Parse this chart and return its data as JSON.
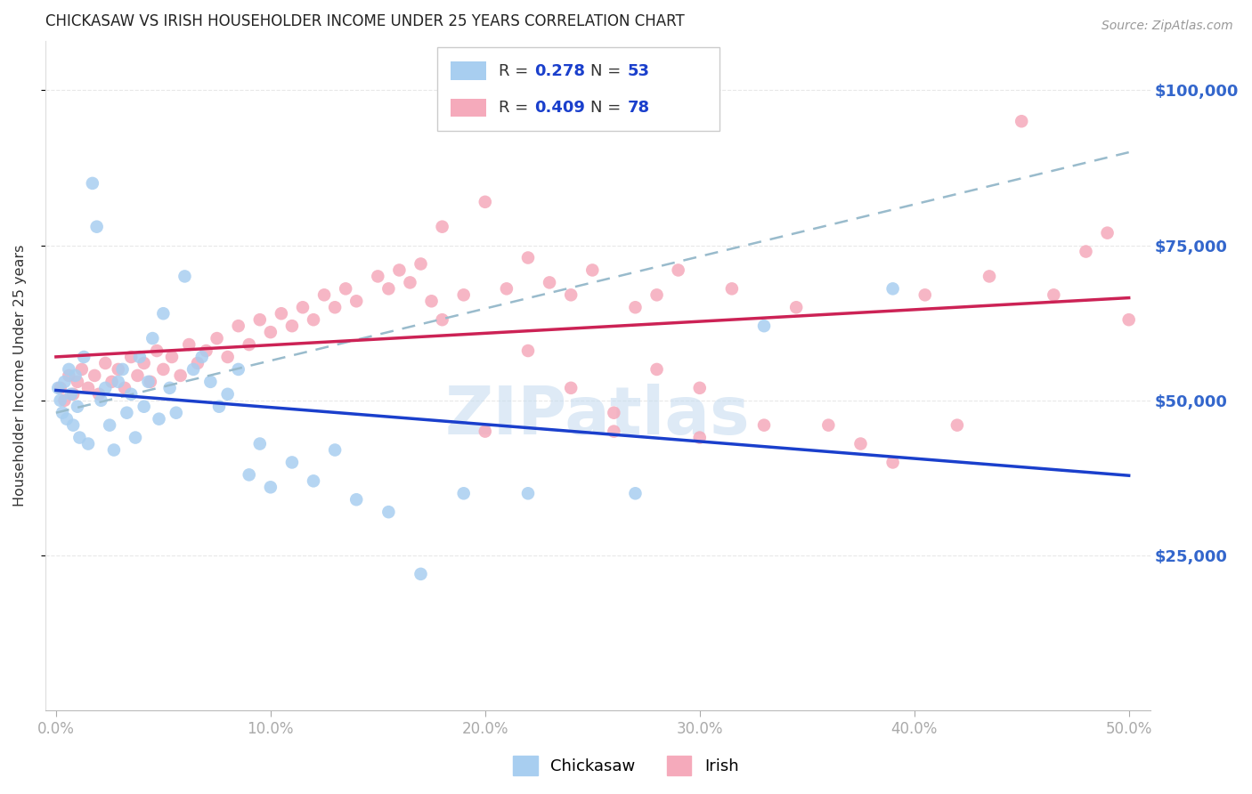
{
  "title": "CHICKASAW VS IRISH HOUSEHOLDER INCOME UNDER 25 YEARS CORRELATION CHART",
  "source_text": "Source: ZipAtlas.com",
  "ylabel": "Householder Income Under 25 years",
  "ytick_labels": [
    "$25,000",
    "$50,000",
    "$75,000",
    "$100,000"
  ],
  "ytick_vals": [
    25000,
    50000,
    75000,
    100000
  ],
  "ylim": [
    0,
    108000
  ],
  "xlim": [
    -0.5,
    51
  ],
  "legend1_R": "0.278",
  "legend1_N": "53",
  "legend2_R": "0.409",
  "legend2_N": "78",
  "legend1_label": "Chickasaw",
  "legend2_label": "Irish",
  "blue_color": "#a8cef0",
  "pink_color": "#f5aabb",
  "blue_line_color": "#1a3fcc",
  "pink_line_color": "#cc2255",
  "grey_dash_color": "#99bbcc",
  "right_tick_color": "#3366cc",
  "grid_color": "#e8e8e8",
  "background_color": "#ffffff",
  "chickasaw_x": [
    0.1,
    0.2,
    0.3,
    0.4,
    0.5,
    0.6,
    0.7,
    0.8,
    0.9,
    1.0,
    1.1,
    1.3,
    1.5,
    1.7,
    1.9,
    2.1,
    2.3,
    2.5,
    2.7,
    2.9,
    3.1,
    3.3,
    3.5,
    3.7,
    3.9,
    4.1,
    4.3,
    4.5,
    4.8,
    5.0,
    5.3,
    5.6,
    6.0,
    6.4,
    6.8,
    7.2,
    7.6,
    8.0,
    8.5,
    9.0,
    9.5,
    10.0,
    11.0,
    12.0,
    13.0,
    14.0,
    15.5,
    17.0,
    19.0,
    22.0,
    27.0,
    33.0,
    39.0
  ],
  "chickasaw_y": [
    52000,
    50000,
    48000,
    53000,
    47000,
    55000,
    51000,
    46000,
    54000,
    49000,
    44000,
    57000,
    43000,
    85000,
    78000,
    50000,
    52000,
    46000,
    42000,
    53000,
    55000,
    48000,
    51000,
    44000,
    57000,
    49000,
    53000,
    60000,
    47000,
    64000,
    52000,
    48000,
    70000,
    55000,
    57000,
    53000,
    49000,
    51000,
    55000,
    38000,
    43000,
    36000,
    40000,
    37000,
    42000,
    34000,
    32000,
    22000,
    35000,
    35000,
    35000,
    62000,
    68000
  ],
  "irish_x": [
    0.2,
    0.4,
    0.6,
    0.8,
    1.0,
    1.2,
    1.5,
    1.8,
    2.0,
    2.3,
    2.6,
    2.9,
    3.2,
    3.5,
    3.8,
    4.1,
    4.4,
    4.7,
    5.0,
    5.4,
    5.8,
    6.2,
    6.6,
    7.0,
    7.5,
    8.0,
    8.5,
    9.0,
    9.5,
    10.0,
    10.5,
    11.0,
    11.5,
    12.0,
    12.5,
    13.0,
    13.5,
    14.0,
    15.0,
    15.5,
    16.0,
    16.5,
    17.0,
    17.5,
    18.0,
    19.0,
    20.0,
    21.0,
    22.0,
    23.0,
    24.0,
    25.0,
    26.0,
    27.0,
    28.0,
    29.0,
    30.0,
    31.5,
    33.0,
    34.5,
    36.0,
    37.5,
    39.0,
    40.5,
    42.0,
    43.5,
    45.0,
    46.5,
    48.0,
    49.0,
    50.0,
    18.0,
    20.0,
    22.0,
    24.0,
    26.0,
    28.0,
    30.0
  ],
  "irish_y": [
    52000,
    50000,
    54000,
    51000,
    53000,
    55000,
    52000,
    54000,
    51000,
    56000,
    53000,
    55000,
    52000,
    57000,
    54000,
    56000,
    53000,
    58000,
    55000,
    57000,
    54000,
    59000,
    56000,
    58000,
    60000,
    57000,
    62000,
    59000,
    63000,
    61000,
    64000,
    62000,
    65000,
    63000,
    67000,
    65000,
    68000,
    66000,
    70000,
    68000,
    71000,
    69000,
    72000,
    66000,
    63000,
    67000,
    45000,
    68000,
    73000,
    69000,
    67000,
    71000,
    45000,
    65000,
    67000,
    71000,
    44000,
    68000,
    46000,
    65000,
    46000,
    43000,
    40000,
    67000,
    46000,
    70000,
    95000,
    67000,
    74000,
    77000,
    63000,
    78000,
    82000,
    58000,
    52000,
    48000,
    55000,
    52000
  ]
}
